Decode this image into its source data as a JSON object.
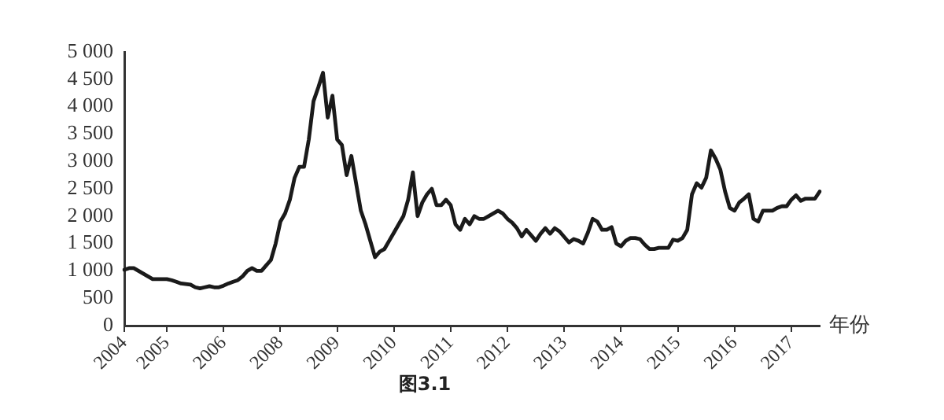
{
  "chart_data": {
    "type": "line",
    "xlabel": "年份",
    "annotations": [
      "图3.1"
    ],
    "color": "#1a1a1a",
    "marker": "none",
    "line_style": "solid",
    "categories": [
      "2004",
      null,
      null,
      null,
      null,
      null,
      null,
      null,
      null,
      "2005",
      null,
      null,
      null,
      null,
      null,
      null,
      null,
      null,
      null,
      null,
      null,
      "2006",
      null,
      null,
      null,
      null,
      null,
      null,
      null,
      null,
      null,
      null,
      null,
      "2008",
      null,
      null,
      null,
      null,
      null,
      null,
      null,
      null,
      null,
      null,
      null,
      "2009",
      null,
      null,
      null,
      null,
      null,
      null,
      null,
      null,
      null,
      null,
      null,
      "2010",
      null,
      null,
      null,
      null,
      null,
      null,
      null,
      null,
      null,
      null,
      null,
      "2011",
      null,
      null,
      null,
      null,
      null,
      null,
      null,
      null,
      null,
      null,
      null,
      "2012",
      null,
      null,
      null,
      null,
      null,
      null,
      null,
      null,
      null,
      null,
      null,
      "2013",
      null,
      null,
      null,
      null,
      null,
      null,
      null,
      null,
      null,
      null,
      null,
      "2014",
      null,
      null,
      null,
      null,
      null,
      null,
      null,
      null,
      null,
      null,
      null,
      "2015",
      null,
      null,
      null,
      null,
      null,
      null,
      null,
      null,
      null,
      null,
      null,
      "2016",
      null,
      null,
      null,
      null,
      null,
      null,
      null,
      null,
      null,
      null,
      null,
      "2017",
      null,
      null,
      null,
      null,
      null,
      null
    ],
    "values": [
      1020,
      1050,
      1050,
      1000,
      950,
      900,
      850,
      850,
      850,
      850,
      830,
      800,
      770,
      760,
      750,
      700,
      680,
      700,
      720,
      700,
      700,
      730,
      770,
      800,
      830,
      900,
      1000,
      1050,
      1000,
      1000,
      1100,
      1200,
      1500,
      1900,
      2050,
      2300,
      2700,
      2900,
      2900,
      3400,
      4100,
      4350,
      4620,
      3800,
      4200,
      3400,
      3300,
      2750,
      3100,
      2600,
      2100,
      1850,
      1550,
      1250,
      1350,
      1400,
      1550,
      1700,
      1850,
      2000,
      2300,
      2800,
      2000,
      2250,
      2400,
      2500,
      2200,
      2200,
      2300,
      2200,
      1850,
      1750,
      1950,
      1850,
      2000,
      1950,
      1950,
      2000,
      2050,
      2100,
      2050,
      1950,
      1880,
      1780,
      1630,
      1750,
      1650,
      1550,
      1680,
      1780,
      1680,
      1780,
      1720,
      1620,
      1520,
      1580,
      1550,
      1500,
      1700,
      1950,
      1900,
      1750,
      1750,
      1800,
      1500,
      1450,
      1550,
      1600,
      1600,
      1580,
      1480,
      1400,
      1400,
      1420,
      1420,
      1420,
      1570,
      1550,
      1600,
      1750,
      2400,
      2600,
      2520,
      2700,
      3200,
      3050,
      2850,
      2450,
      2150,
      2100,
      2250,
      2320,
      2400,
      1950,
      1900,
      2100,
      2100,
      2100,
      2150,
      2180,
      2180,
      2300,
      2380,
      2280,
      2320,
      2320,
      2320,
      2450
    ],
    "ylim": [
      0,
      5000
    ],
    "yticks": [
      0,
      500,
      {
        "value": 1000,
        "label": "1 000"
      },
      {
        "value": 1500,
        "label": "1 500"
      },
      {
        "value": 2000,
        "label": "2 000"
      },
      {
        "value": 2500,
        "label": "2 500"
      },
      {
        "value": 3000,
        "label": "3 000"
      },
      {
        "value": 3500,
        "label": "3 500"
      },
      {
        "value": 4000,
        "label": "4 000"
      },
      {
        "value": 4500,
        "label": "4 500"
      },
      {
        "value": 5000,
        "label": "5 000"
      }
    ]
  }
}
